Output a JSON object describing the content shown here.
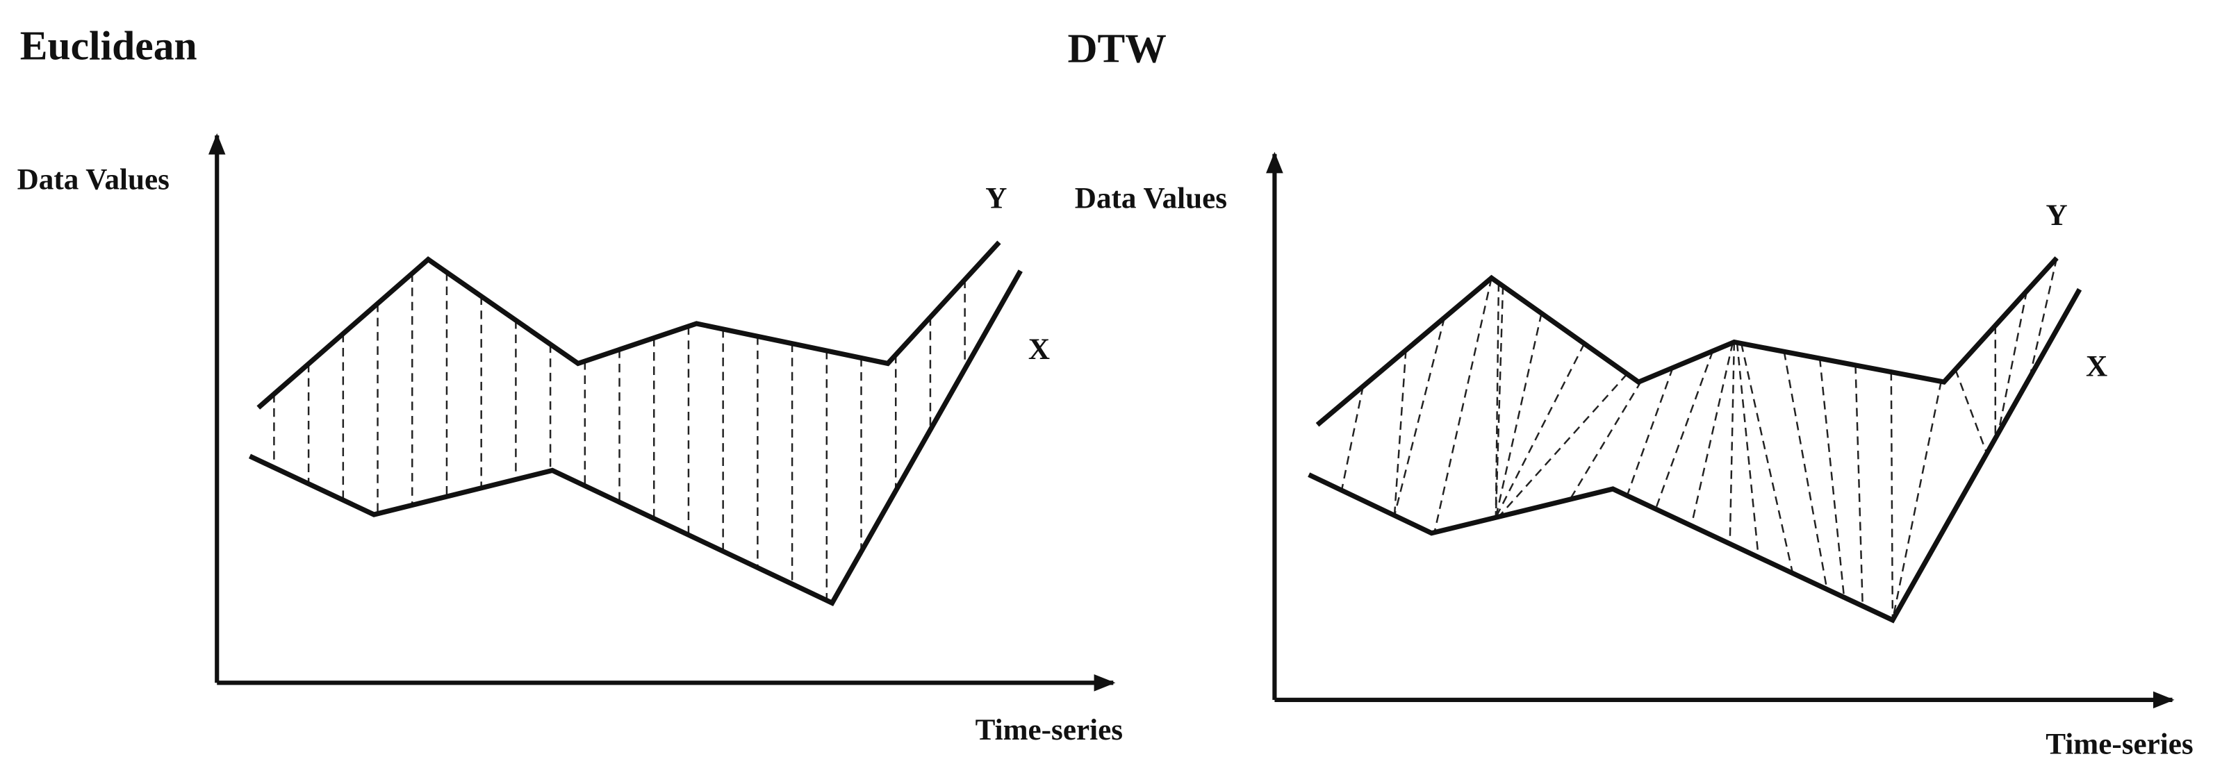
{
  "panels": [
    {
      "title": "Euclidean",
      "y_label": "Data Values",
      "x_label": "Time-series",
      "series_top": "Y",
      "series_bottom": "X"
    },
    {
      "title": "DTW",
      "y_label": "Data Values",
      "x_label": "Time-series",
      "series_top": "Y",
      "series_bottom": "X"
    }
  ]
}
